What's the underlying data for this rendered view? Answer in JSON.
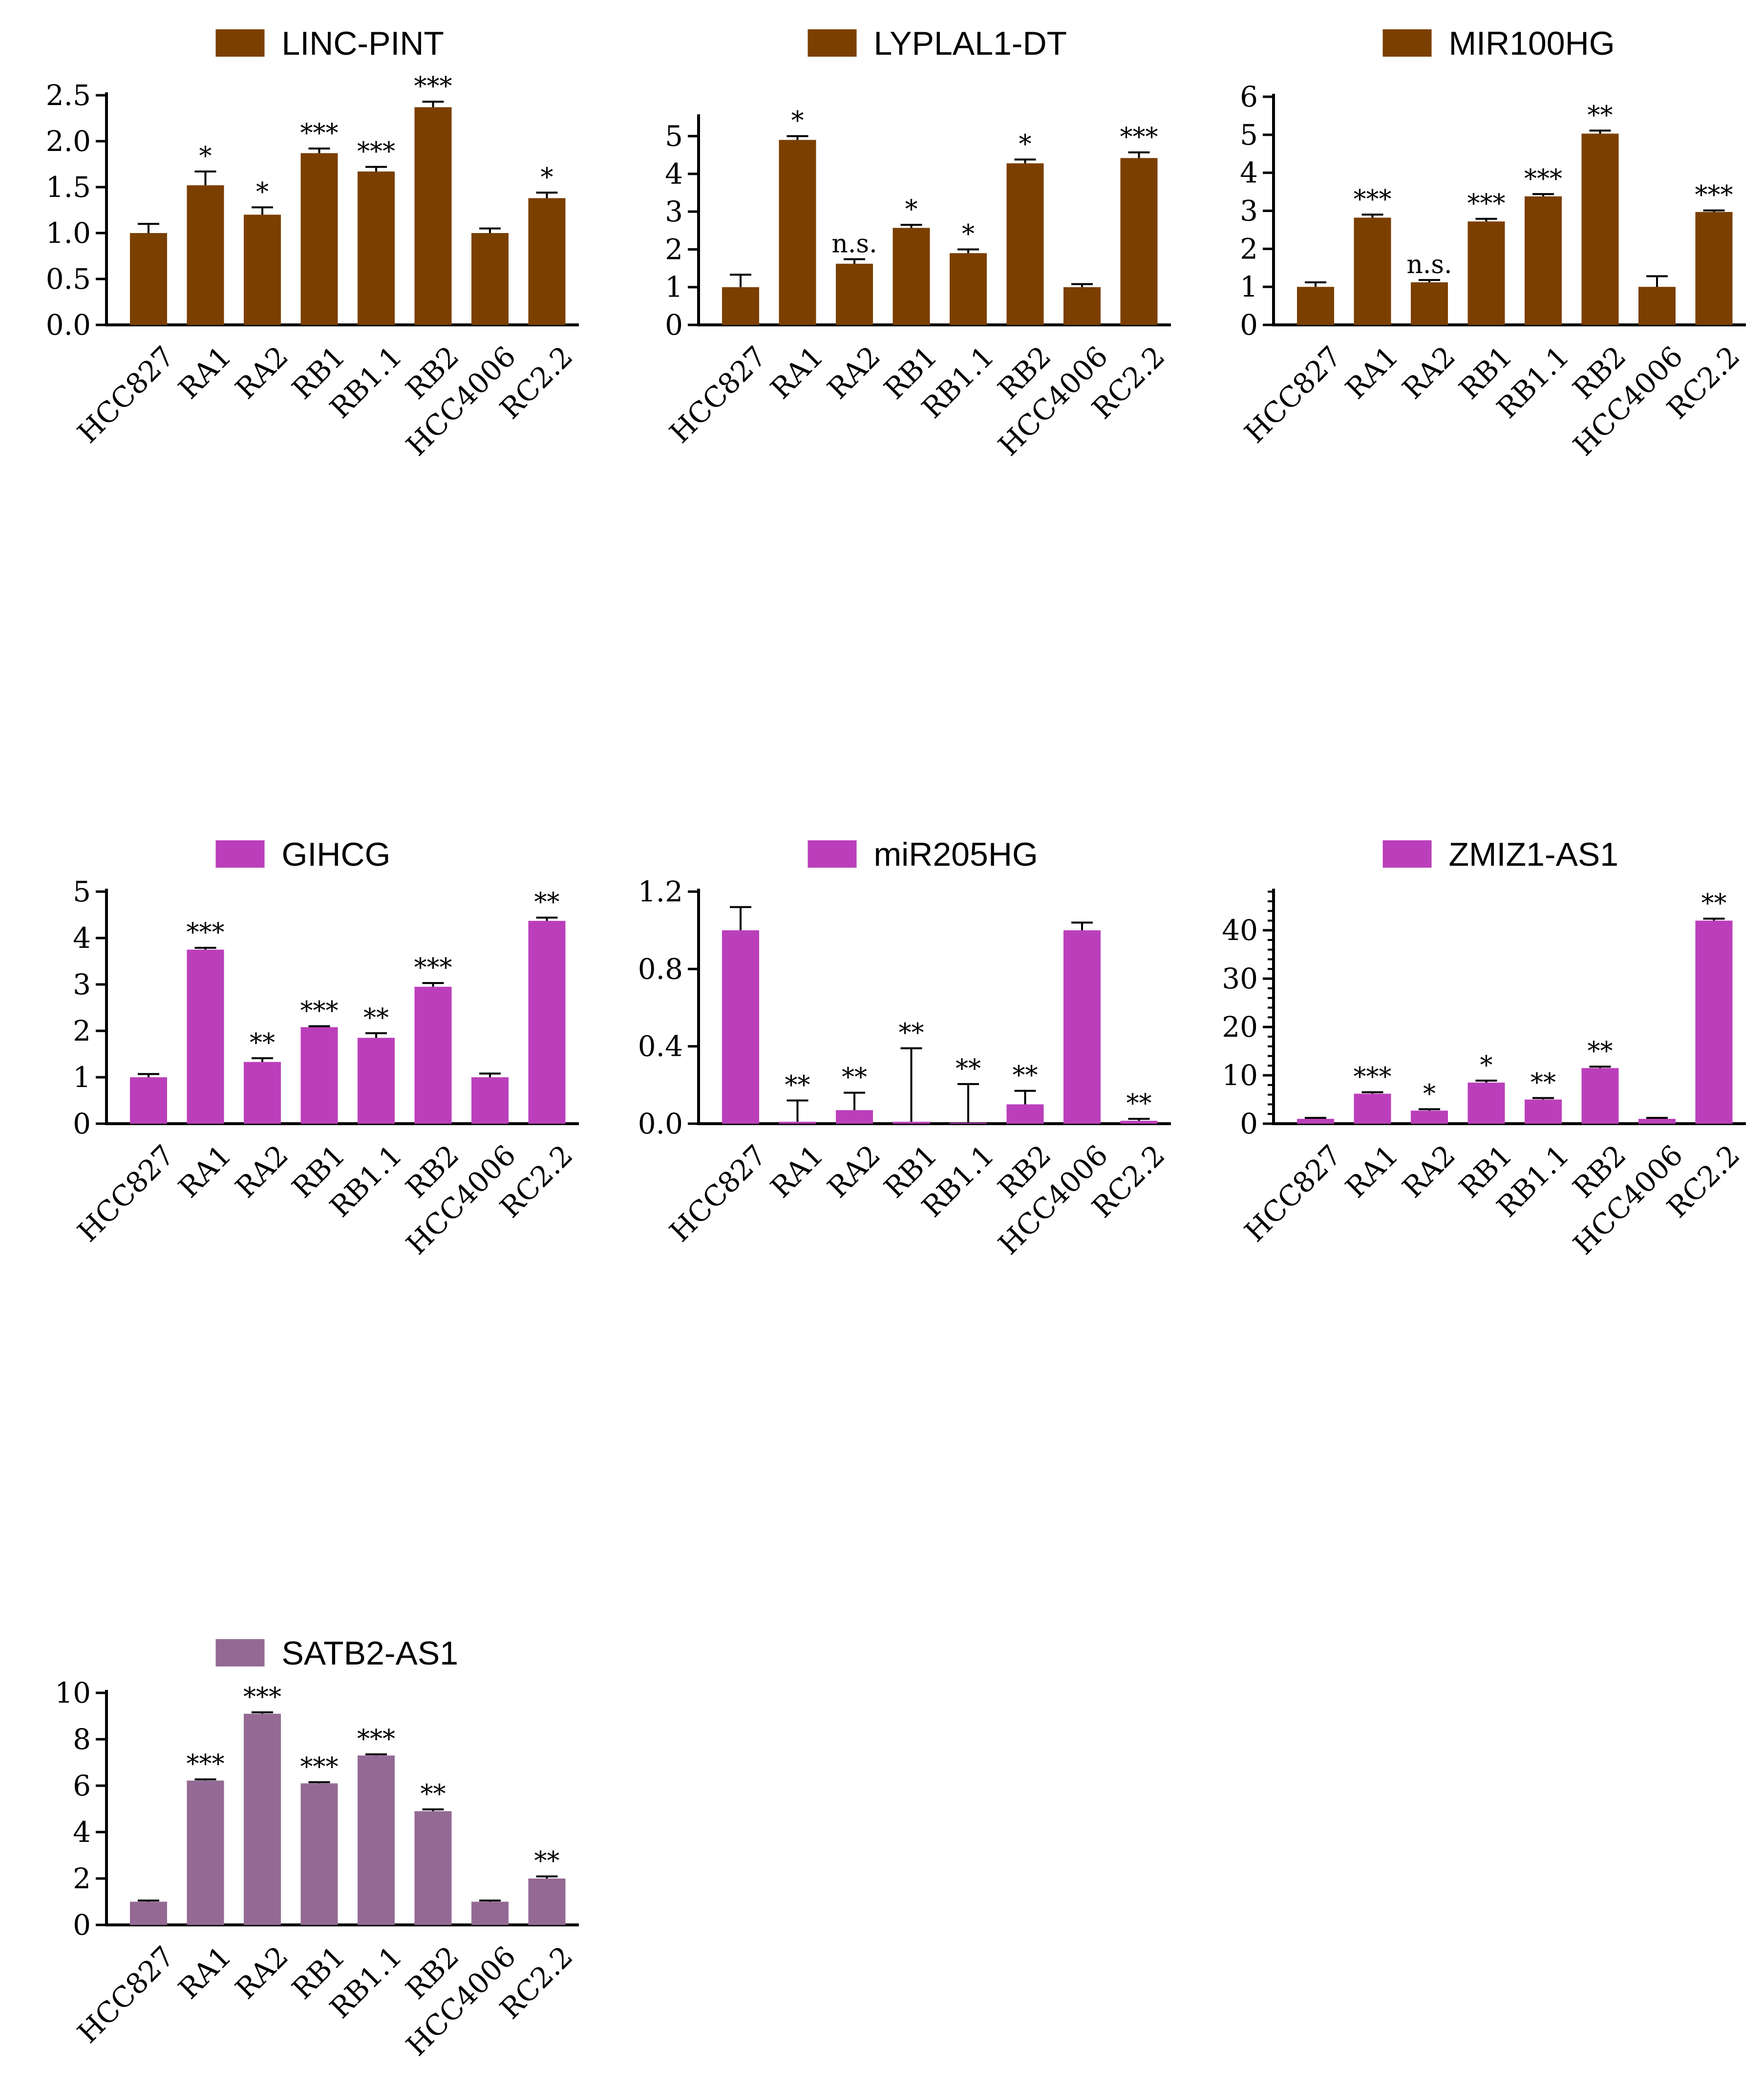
{
  "figure": {
    "colors": {
      "brown": "#7B3F00",
      "magenta": "#BB3FBB",
      "mauve": "#946A94"
    },
    "categories": [
      "HCC827",
      "RA1",
      "RA2",
      "RB1",
      "RB1.1",
      "RB2",
      "HCC4006",
      "RC2.2"
    ]
  },
  "chart_data": [
    {
      "type": "bar",
      "title": "LINC-PINT",
      "legend": "LINC-PINT",
      "color": "#7B3F00",
      "categories": [
        "HCC827",
        "RA1",
        "RA2",
        "RB1",
        "RB1.1",
        "RB2",
        "HCC4006",
        "RC2.2"
      ],
      "values": [
        1.0,
        1.52,
        1.2,
        1.87,
        1.67,
        2.37,
        1.0,
        1.38
      ],
      "errors": [
        0.1,
        0.15,
        0.08,
        0.05,
        0.05,
        0.06,
        0.05,
        0.06
      ],
      "significance": [
        "",
        "*",
        "*",
        "***",
        "***",
        "***",
        "",
        "*"
      ],
      "ylim": [
        0,
        2.5
      ],
      "yticks": [
        "0.0",
        "0.5",
        "1.0",
        "1.5",
        "2.0",
        "2.5"
      ],
      "xlabel": "",
      "ylabel": "",
      "legend_position": "top"
    },
    {
      "type": "bar",
      "title": "LYPLAL1-DT",
      "legend": "LYPLAL1-DT",
      "color": "#7B3F00",
      "categories": [
        "HCC827",
        "RA1",
        "RA2",
        "RB1",
        "RB1.1",
        "RB2",
        "HCC4006",
        "RC2.2"
      ],
      "values": [
        1.0,
        4.9,
        1.62,
        2.57,
        1.9,
        4.28,
        1.0,
        4.42
      ],
      "errors": [
        0.33,
        0.1,
        0.12,
        0.08,
        0.1,
        0.1,
        0.08,
        0.15
      ],
      "significance": [
        "",
        "*",
        "n.s.",
        "*",
        "*",
        "*",
        "",
        "***"
      ],
      "ylim": [
        0,
        5.5
      ],
      "yticks": [
        "0",
        "1",
        "2",
        "3",
        "4",
        "5"
      ],
      "xlabel": "",
      "ylabel": "",
      "legend_position": "top"
    },
    {
      "type": "bar",
      "title": "MIR100HG",
      "legend": "MIR100HG",
      "color": "#7B3F00",
      "categories": [
        "HCC827",
        "RA1",
        "RA2",
        "RB1",
        "RB1.1",
        "RB2",
        "HCC4006",
        "RC2.2"
      ],
      "values": [
        1.0,
        2.82,
        1.12,
        2.72,
        3.38,
        5.03,
        1.0,
        2.97
      ],
      "errors": [
        0.12,
        0.08,
        0.06,
        0.07,
        0.06,
        0.08,
        0.28,
        0.04
      ],
      "significance": [
        "",
        "***",
        "n.s.",
        "***",
        "***",
        "**",
        "",
        "***"
      ],
      "ylim": [
        0,
        6
      ],
      "yticks": [
        "0",
        "1",
        "2",
        "3",
        "4",
        "5",
        "6"
      ],
      "xlabel": "",
      "ylabel": "",
      "legend_position": "top"
    },
    {
      "type": "bar",
      "title": "GIHCG",
      "legend": "GIHCG",
      "color": "#BB3FBB",
      "categories": [
        "HCC827",
        "RA1",
        "RA2",
        "RB1",
        "RB1.1",
        "RB2",
        "HCC4006",
        "RC2.2"
      ],
      "values": [
        1.0,
        3.75,
        1.33,
        2.08,
        1.85,
        2.95,
        1.0,
        4.37
      ],
      "errors": [
        0.07,
        0.04,
        0.08,
        0.02,
        0.1,
        0.08,
        0.08,
        0.07
      ],
      "significance": [
        "",
        "***",
        "**",
        "***",
        "**",
        "***",
        "",
        "**"
      ],
      "ylim": [
        0,
        5
      ],
      "yticks": [
        "0",
        "1",
        "2",
        "3",
        "4",
        "5"
      ],
      "xlabel": "",
      "ylabel": "",
      "legend_position": "top"
    },
    {
      "type": "bar",
      "title": "miR205HG",
      "legend": "miR205HG",
      "color": "#BB3FBB",
      "categories": [
        "HCC827",
        "RA1",
        "RA2",
        "RB1",
        "RB1.1",
        "RB2",
        "HCC4006",
        "RC2.2"
      ],
      "values": [
        1.0,
        0.01,
        0.07,
        0.01,
        0.005,
        0.1,
        1.0,
        0.015
      ],
      "errors": [
        0.12,
        0.11,
        0.09,
        0.38,
        0.2,
        0.07,
        0.04,
        0.01
      ],
      "significance": [
        "",
        "**",
        "**",
        "**",
        "**",
        "**",
        "",
        "**"
      ],
      "ylim": [
        0,
        1.2
      ],
      "yticks": [
        "0.0",
        "0.4",
        "0.8",
        "1.2"
      ],
      "xlabel": "",
      "ylabel": "",
      "legend_position": "top"
    },
    {
      "type": "bar",
      "title": "ZMIZ1-AS1",
      "legend": "ZMIZ1-AS1",
      "color": "#BB3FBB",
      "categories": [
        "HCC827",
        "RA1",
        "RA2",
        "RB1",
        "RB1.1",
        "RB2",
        "HCC4006",
        "RC2.2"
      ],
      "values": [
        1.0,
        6.2,
        2.7,
        8.5,
        5.0,
        11.5,
        1.0,
        42.0
      ],
      "errors": [
        0.2,
        0.3,
        0.3,
        0.4,
        0.3,
        0.3,
        0.2,
        0.4
      ],
      "significance": [
        "",
        "***",
        "*",
        "*",
        "**",
        "**",
        "",
        "**"
      ],
      "ylim": [
        0,
        48
      ],
      "yticks": [
        "0",
        "10",
        "20",
        "30",
        "40"
      ],
      "xlabel": "",
      "ylabel": "",
      "legend_position": "top"
    },
    {
      "type": "bar",
      "title": "SATB2-AS1",
      "legend": "SATB2-AS1",
      "color": "#946A94",
      "categories": [
        "HCC827",
        "RA1",
        "RA2",
        "RB1",
        "RB1.1",
        "RB2",
        "HCC4006",
        "RC2.2"
      ],
      "values": [
        1.0,
        6.22,
        9.1,
        6.1,
        7.3,
        4.9,
        1.0,
        2.0
      ],
      "errors": [
        0.05,
        0.05,
        0.06,
        0.05,
        0.05,
        0.08,
        0.05,
        0.09
      ],
      "significance": [
        "",
        "***",
        "***",
        "***",
        "***",
        "**",
        "",
        "**"
      ],
      "ylim": [
        0,
        10
      ],
      "yticks": [
        "0",
        "2",
        "4",
        "6",
        "8",
        "10"
      ],
      "xlabel": "",
      "ylabel": "",
      "legend_position": "top"
    }
  ]
}
